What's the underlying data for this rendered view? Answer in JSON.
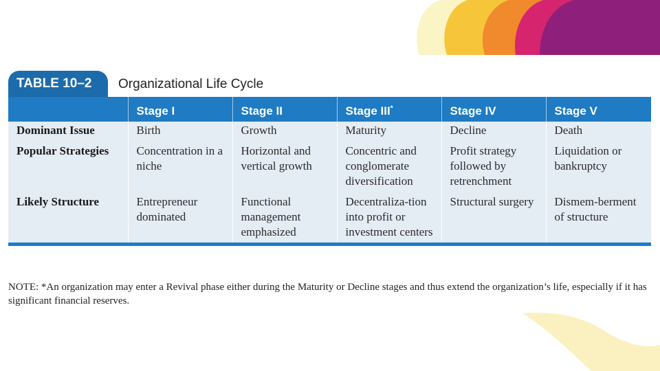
{
  "table": {
    "number": "TABLE 10–2",
    "title": "Organizational Life Cycle",
    "headers": [
      "",
      "Stage I",
      "Stage II",
      "Stage III",
      "Stage IV",
      "Stage V"
    ],
    "header_mark": "*",
    "rows": [
      {
        "label": "Dominant Issue",
        "cells": [
          "Birth",
          "Growth",
          "Maturity",
          "Decline",
          "Death"
        ]
      },
      {
        "label": "Popular Strategies",
        "cells": [
          "Concentration in a niche",
          "Horizontal and vertical growth",
          "Concentric and conglomerate diversification",
          "Profit strategy followed by retrenchment",
          "Liquidation or bankruptcy"
        ]
      },
      {
        "label": "Likely Structure",
        "cells": [
          "Entrepreneur dominated",
          "Functional management emphasized",
          "Decentraliza-tion into profit or investment centers",
          "Structural surgery",
          "Dismem-berment of structure"
        ]
      }
    ],
    "note": "NOTE: *An organization may enter a Revival phase either during the Maturity or Decline stages and thus extend the organization’s life, especially if it has significant financial reserves."
  },
  "colors": {
    "header_blue": "#1e7bc4",
    "row_bg": "#e4ecf4",
    "deco": [
      "#fbf4c4",
      "#f7c53a",
      "#f08a2c",
      "#d6246e",
      "#8e1f7a"
    ]
  }
}
